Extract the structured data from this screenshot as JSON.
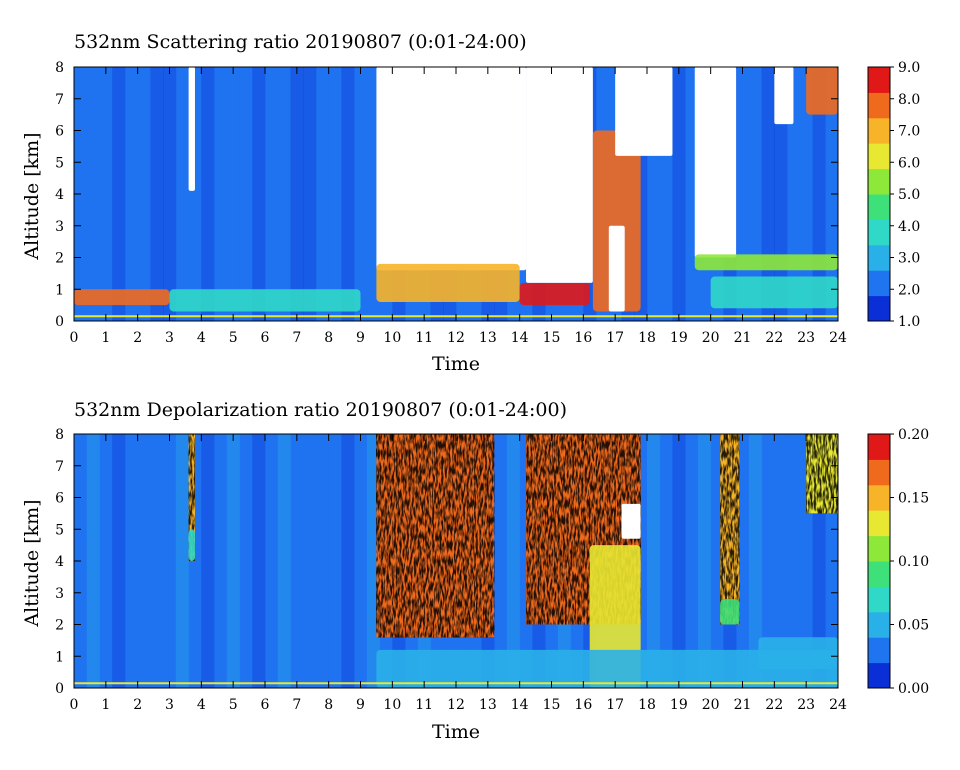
{
  "chart_data": [
    {
      "type": "heatmap",
      "title": "532nm Scattering ratio  20190807 (0:01-24:00)",
      "xlabel": "Time",
      "ylabel": "Altitude [km]",
      "xlim": [
        0,
        24
      ],
      "ylim": [
        0,
        8
      ],
      "x_ticks": [
        "0",
        "1",
        "2",
        "3",
        "4",
        "5",
        "6",
        "7",
        "8",
        "9",
        "10",
        "11",
        "12",
        "13",
        "14",
        "15",
        "16",
        "17",
        "18",
        "19",
        "20",
        "21",
        "22",
        "23",
        "24"
      ],
      "y_ticks": [
        "0",
        "1",
        "2",
        "3",
        "4",
        "5",
        "6",
        "7",
        "8"
      ],
      "colorbar": {
        "min": 1.0,
        "max": 9.0,
        "ticks": [
          "1.0",
          "2.0",
          "3.0",
          "4.0",
          "5.0",
          "6.0",
          "7.0",
          "8.0",
          "9.0"
        ],
        "colors": [
          "#0a2fd6",
          "#1f74f0",
          "#2ab0e8",
          "#30d8c8",
          "#3ee07a",
          "#8ee83a",
          "#e8e832",
          "#f8b428",
          "#f06a1e",
          "#e01818"
        ]
      },
      "background_value": 2.0,
      "features": [
        {
          "kind": "boundary_layer",
          "x": [
            0,
            3
          ],
          "y": [
            0.5,
            1.0
          ],
          "value": 7.5
        },
        {
          "kind": "boundary_layer",
          "x": [
            3,
            9
          ],
          "y": [
            0.3,
            1.0
          ],
          "value": 3.5
        },
        {
          "kind": "missing",
          "x": [
            3.6,
            3.8
          ],
          "y": [
            4.1,
            8.0
          ]
        },
        {
          "kind": "missing",
          "x": [
            9.5,
            14.2
          ],
          "y": [
            1.6,
            8.0
          ]
        },
        {
          "kind": "cloud",
          "x": [
            9.5,
            14.0
          ],
          "y": [
            0.6,
            1.8
          ],
          "value": 7.0
        },
        {
          "kind": "cloud",
          "x": [
            14.0,
            16.2
          ],
          "y": [
            0.5,
            1.2
          ],
          "value": 8.5
        },
        {
          "kind": "missing",
          "x": [
            14.2,
            16.3
          ],
          "y": [
            1.2,
            8.0
          ]
        },
        {
          "kind": "cloud",
          "x": [
            16.3,
            17.8
          ],
          "y": [
            0.3,
            6.0
          ],
          "value": 8.0
        },
        {
          "kind": "missing",
          "x": [
            16.8,
            17.3
          ],
          "y": [
            0.3,
            3.0
          ]
        },
        {
          "kind": "missing",
          "x": [
            17.0,
            18.8
          ],
          "y": [
            5.2,
            8.0
          ]
        },
        {
          "kind": "missing",
          "x": [
            19.5,
            20.8
          ],
          "y": [
            2.0,
            8.0
          ]
        },
        {
          "kind": "missing",
          "x": [
            22.0,
            22.6
          ],
          "y": [
            6.2,
            8.0
          ]
        },
        {
          "kind": "cloud",
          "x": [
            19.5,
            24.0
          ],
          "y": [
            1.6,
            2.1
          ],
          "value": 5.0
        },
        {
          "kind": "cloud",
          "x": [
            20.0,
            24.0
          ],
          "y": [
            0.4,
            1.4
          ],
          "value": 3.5
        },
        {
          "kind": "cloud",
          "x": [
            23.0,
            24.0
          ],
          "y": [
            6.5,
            8.0
          ],
          "value": 7.5
        }
      ]
    },
    {
      "type": "heatmap",
      "title": "532nm Depolarization ratio  20190807 (0:01-24:00)",
      "xlabel": "Time",
      "ylabel": "Altitude [km]",
      "xlim": [
        0,
        24
      ],
      "ylim": [
        0,
        8
      ],
      "x_ticks": [
        "0",
        "1",
        "2",
        "3",
        "4",
        "5",
        "6",
        "7",
        "8",
        "9",
        "10",
        "11",
        "12",
        "13",
        "14",
        "15",
        "16",
        "17",
        "18",
        "19",
        "20",
        "21",
        "22",
        "23",
        "24"
      ],
      "y_ticks": [
        "0",
        "1",
        "2",
        "3",
        "4",
        "5",
        "6",
        "7",
        "8"
      ],
      "colorbar": {
        "min": 0.0,
        "max": 0.2,
        "ticks": [
          "0.00",
          "0.05",
          "0.10",
          "0.15",
          "0.20"
        ],
        "colors": [
          "#0a2fd6",
          "#1f74f0",
          "#2ab0e8",
          "#30d8c8",
          "#3ee07a",
          "#8ee83a",
          "#e8e832",
          "#f8b428",
          "#f06a1e",
          "#e01818"
        ]
      },
      "background_value": 0.03,
      "features": [
        {
          "kind": "speckle",
          "x": [
            3.6,
            3.8
          ],
          "y": [
            4.0,
            8.0
          ],
          "value": 0.15
        },
        {
          "kind": "cloud",
          "x": [
            3.6,
            3.8
          ],
          "y": [
            4.0,
            5.0
          ],
          "value": 0.08
        },
        {
          "kind": "speckle",
          "x": [
            9.5,
            13.2
          ],
          "y": [
            1.6,
            8.0
          ],
          "value": 0.17
        },
        {
          "kind": "speckle",
          "x": [
            14.2,
            17.8
          ],
          "y": [
            2.0,
            8.0
          ],
          "value": 0.17
        },
        {
          "kind": "cloud",
          "x": [
            16.2,
            17.8
          ],
          "y": [
            0.0,
            4.5
          ],
          "value": 0.12
        },
        {
          "kind": "missing",
          "x": [
            17.2,
            17.8
          ],
          "y": [
            4.7,
            5.8
          ]
        },
        {
          "kind": "speckle",
          "x": [
            20.3,
            20.9
          ],
          "y": [
            2.0,
            8.0
          ],
          "value": 0.16
        },
        {
          "kind": "cloud",
          "x": [
            20.3,
            20.9
          ],
          "y": [
            2.0,
            2.8
          ],
          "value": 0.09
        },
        {
          "kind": "cloud",
          "x": [
            21.5,
            24.0
          ],
          "y": [
            0.6,
            1.6
          ],
          "value": 0.05
        },
        {
          "kind": "speckle",
          "x": [
            23.0,
            24.0
          ],
          "y": [
            5.5,
            8.0
          ],
          "value": 0.12
        },
        {
          "kind": "cloud",
          "x": [
            9.5,
            24.0
          ],
          "y": [
            0.0,
            1.2
          ],
          "value": 0.05
        }
      ]
    }
  ]
}
